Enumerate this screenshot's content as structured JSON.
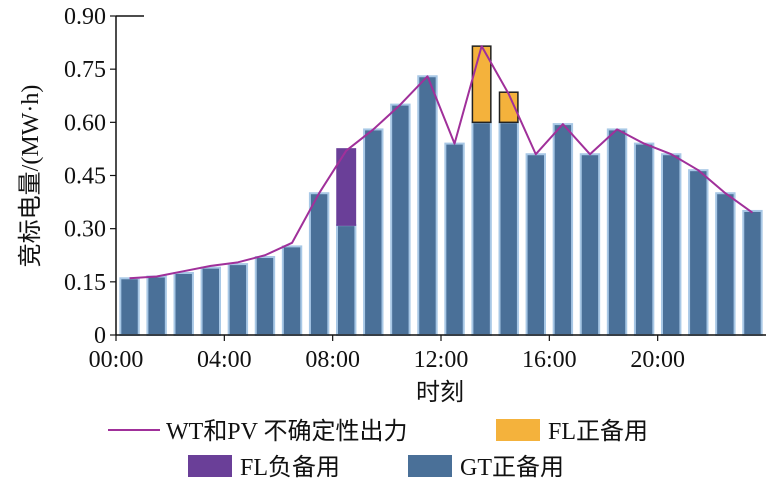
{
  "chart_data": {
    "type": "bar",
    "xlabel": "时刻",
    "ylabel": "竞标电量/(MW·h)",
    "ylim": [
      0,
      0.9
    ],
    "yticks": [
      "0",
      "0.15",
      "0.30",
      "0.45",
      "0.60",
      "0.75",
      "0.90"
    ],
    "xticks": [
      "00:00",
      "04:00",
      "08:00",
      "12:00",
      "16:00",
      "20:00"
    ],
    "hours": [
      0,
      1,
      2,
      3,
      4,
      5,
      6,
      7,
      8,
      9,
      10,
      11,
      12,
      13,
      14,
      15,
      16,
      17,
      18,
      19,
      20,
      21,
      22,
      23
    ],
    "series": [
      {
        "name": "GT正备用",
        "kind": "bar",
        "values": [
          0.16,
          0.165,
          0.175,
          0.19,
          0.2,
          0.22,
          0.25,
          0.4,
          0.31,
          0.58,
          0.65,
          0.73,
          0.54,
          0.6,
          0.6,
          0.51,
          0.595,
          0.51,
          0.58,
          0.54,
          0.51,
          0.465,
          0.4,
          0.35
        ]
      },
      {
        "name": "FL负备用",
        "kind": "stacked_bar",
        "values": [
          0,
          0,
          0,
          0,
          0,
          0,
          0,
          0,
          0.215,
          0,
          0,
          0,
          0,
          0,
          0,
          0,
          0,
          0,
          0,
          0,
          0,
          0,
          0,
          0
        ]
      },
      {
        "name": "FL正备用",
        "kind": "stacked_bar",
        "values": [
          0,
          0,
          0,
          0,
          0,
          0,
          0,
          0,
          0,
          0,
          0,
          0,
          0,
          0.215,
          0.085,
          0,
          0,
          0,
          0,
          0,
          0,
          0,
          0,
          0
        ]
      },
      {
        "name": "WT和PV 不确定性出力",
        "kind": "line",
        "values": [
          0.16,
          0.165,
          0.18,
          0.195,
          0.205,
          0.225,
          0.26,
          0.4,
          0.52,
          0.58,
          0.65,
          0.73,
          0.54,
          0.815,
          0.68,
          0.51,
          0.595,
          0.51,
          0.58,
          0.54,
          0.51,
          0.465,
          0.4,
          0.345
        ]
      }
    ],
    "colors": {
      "gt_pos": "#4a7098",
      "gt_edge": "#a8c8e6",
      "fl_neg": "#6a3f98",
      "fl_pos": "#f4b23c",
      "line": "#a0309a"
    },
    "legend": {
      "line": "WT和PV 不确定性出力",
      "fl_pos": "FL正备用",
      "fl_neg": "FL负备用",
      "gt_pos": "GT正备用"
    }
  }
}
